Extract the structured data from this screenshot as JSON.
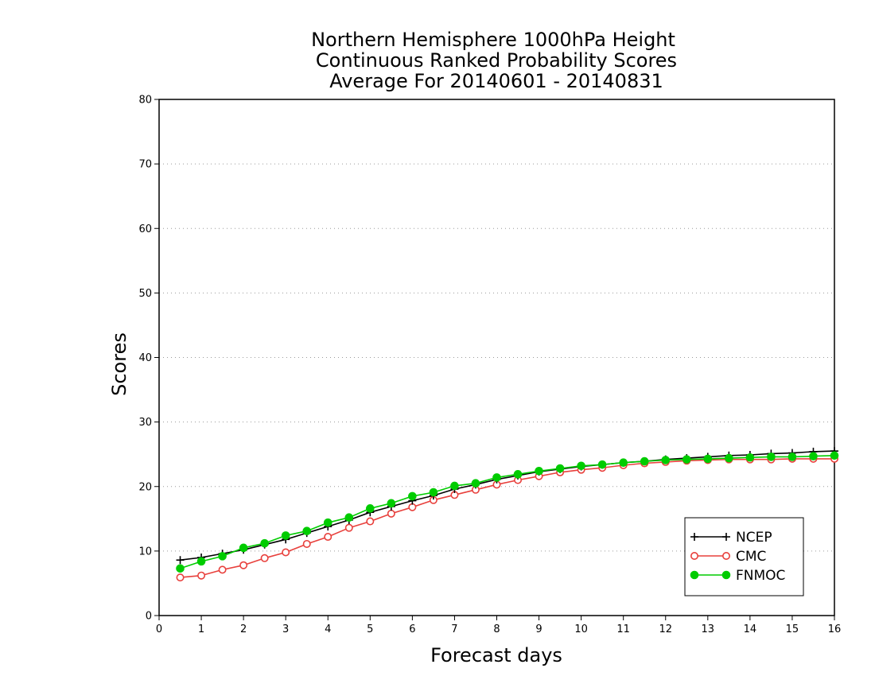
{
  "chart_data": {
    "type": "line",
    "title": [
      "Northern Hemisphere 1000hPa Height",
      "Continuous Ranked Probability Scores",
      "Average For 20140601 - 20140831"
    ],
    "xlabel": "Forecast days",
    "ylabel": "Scores",
    "xlim": [
      0,
      16
    ],
    "ylim": [
      0,
      80
    ],
    "xticks": [
      "0",
      "1",
      "2",
      "3",
      "4",
      "5",
      "6",
      "7",
      "8",
      "9",
      "10",
      "11",
      "12",
      "13",
      "14",
      "15",
      "16"
    ],
    "yticks": [
      "0",
      "10",
      "20",
      "30",
      "40",
      "50",
      "60",
      "70",
      "80"
    ],
    "grid": "horizontal-dotted",
    "legend_position": "bottom-right",
    "x": [
      0.5,
      1,
      1.5,
      2,
      2.5,
      3,
      3.5,
      4,
      4.5,
      5,
      5.5,
      6,
      6.5,
      7,
      7.5,
      8,
      8.5,
      9,
      9.5,
      10,
      10.5,
      11,
      11.5,
      12,
      12.5,
      13,
      13.5,
      14,
      14.5,
      15,
      15.5,
      16
    ],
    "series": [
      {
        "name": "NCEP",
        "color": "#000000",
        "marker": "plus",
        "values": [
          8.6,
          9.0,
          9.6,
          10.2,
          11.0,
          11.8,
          12.8,
          13.8,
          14.8,
          16.0,
          16.9,
          17.8,
          18.6,
          19.6,
          20.3,
          21.1,
          21.7,
          22.3,
          22.7,
          23.1,
          23.4,
          23.7,
          23.9,
          24.2,
          24.4,
          24.6,
          24.8,
          24.9,
          25.1,
          25.2,
          25.4,
          25.5
        ]
      },
      {
        "name": "CMC",
        "color": "#e8403c",
        "marker": "open-circle",
        "values": [
          5.9,
          6.2,
          7.1,
          7.8,
          8.9,
          9.8,
          11.1,
          12.2,
          13.6,
          14.6,
          15.8,
          16.8,
          17.9,
          18.7,
          19.5,
          20.3,
          21.0,
          21.6,
          22.2,
          22.6,
          22.9,
          23.3,
          23.6,
          23.8,
          24.0,
          24.1,
          24.2,
          24.2,
          24.2,
          24.3,
          24.3,
          24.3
        ]
      },
      {
        "name": "FNMOC",
        "color": "#00cc00",
        "marker": "filled-circle",
        "values": [
          7.3,
          8.4,
          9.2,
          10.5,
          11.2,
          12.4,
          13.1,
          14.4,
          15.2,
          16.6,
          17.4,
          18.5,
          19.1,
          20.1,
          20.5,
          21.4,
          21.9,
          22.4,
          22.8,
          23.2,
          23.4,
          23.7,
          23.9,
          24.1,
          24.2,
          24.3,
          24.4,
          24.5,
          24.6,
          24.6,
          24.7,
          24.8
        ]
      }
    ]
  }
}
